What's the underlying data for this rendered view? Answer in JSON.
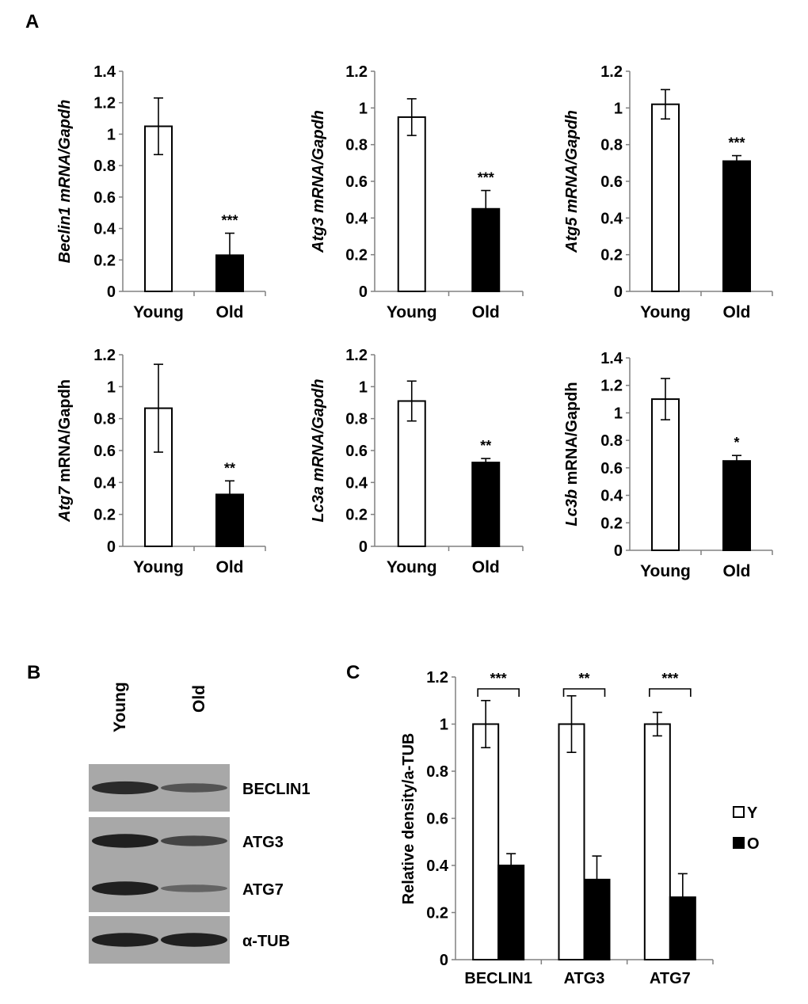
{
  "panels": {
    "a": "A",
    "b": "B",
    "c": "C"
  },
  "colors": {
    "young": "#ffffff",
    "old": "#000000",
    "axis": "#808080",
    "blot_bg": "#a8a8a8",
    "band": "#1a1a1a"
  },
  "chart_data": [
    {
      "type": "bar",
      "ylabel_italic": "Beclin1 mRNA/Gapdh",
      "ylabel_plain": "",
      "categories": [
        "Young",
        "Old"
      ],
      "values": [
        1.05,
        0.23
      ],
      "errors": [
        0.18,
        0.14
      ],
      "significance": [
        "",
        "***"
      ],
      "ylim": [
        0,
        1.4
      ],
      "ticks": [
        "0",
        "0.2",
        "0.4",
        "0.6",
        "0.8",
        "1",
        "1.2",
        "1.4"
      ]
    },
    {
      "type": "bar",
      "ylabel_italic": "Atg3 mRNA/Gapdh",
      "ylabel_plain": "",
      "categories": [
        "Young",
        "Old"
      ],
      "values": [
        0.95,
        0.45
      ],
      "errors": [
        0.1,
        0.1
      ],
      "significance": [
        "",
        "***"
      ],
      "ylim": [
        0,
        1.2
      ],
      "ticks": [
        "0",
        "0.2",
        "0.4",
        "0.6",
        "0.8",
        "1",
        "1.2"
      ]
    },
    {
      "type": "bar",
      "ylabel_italic": "Atg5 mRNA/Gapdh",
      "ylabel_plain": "",
      "categories": [
        "Young",
        "Old"
      ],
      "values": [
        1.02,
        0.71
      ],
      "errors": [
        0.08,
        0.03
      ],
      "significance": [
        "",
        "***"
      ],
      "ylim": [
        0,
        1.2
      ],
      "ticks": [
        "0",
        "0.2",
        "0.4",
        "0.6",
        "0.8",
        "1",
        "1.2"
      ]
    },
    {
      "type": "bar",
      "ylabel_italic": "Atg7",
      "ylabel_plain": " mRNA/Gapdh",
      "categories": [
        "Young",
        "Old"
      ],
      "values": [
        0.865,
        0.325
      ],
      "errors": [
        0.275,
        0.085
      ],
      "significance": [
        "",
        "**"
      ],
      "ylim": [
        0,
        1.2
      ],
      "ticks": [
        "0",
        "0.2",
        "0.4",
        "0.6",
        "0.8",
        "1",
        "1.2"
      ]
    },
    {
      "type": "bar",
      "ylabel_italic": "Lc3a mRNA/Gapdh",
      "ylabel_plain": "",
      "categories": [
        "Young",
        "Old"
      ],
      "values": [
        0.91,
        0.525
      ],
      "errors": [
        0.125,
        0.025
      ],
      "significance": [
        "",
        "**"
      ],
      "ylim": [
        0,
        1.2
      ],
      "ticks": [
        "0",
        "0.2",
        "0.4",
        "0.6",
        "0.8",
        "1",
        "1.2"
      ]
    },
    {
      "type": "bar",
      "ylabel_italic": "Lc3b",
      "ylabel_plain": " mRNA/Gapdh",
      "categories": [
        "Young",
        "Old"
      ],
      "values": [
        1.1,
        0.65
      ],
      "errors": [
        0.15,
        0.04
      ],
      "significance": [
        "",
        "*"
      ],
      "ylim": [
        0,
        1.4
      ],
      "ticks": [
        "0",
        "0.2",
        "0.4",
        "0.6",
        "0.8",
        "1",
        "1.2",
        "1.4"
      ]
    },
    {
      "type": "bar",
      "ylabel": "Relative density/a-TUB",
      "categories": [
        "BECLIN1",
        "ATG3",
        "ATG7"
      ],
      "series": [
        {
          "name": "Y",
          "values": [
            1.0,
            1.0,
            1.0
          ],
          "errors": [
            0.1,
            0.12,
            0.05
          ]
        },
        {
          "name": "O",
          "values": [
            0.4,
            0.34,
            0.265
          ],
          "errors": [
            0.05,
            0.1,
            0.1
          ]
        }
      ],
      "significance": [
        "***",
        "**",
        "***"
      ],
      "ylim": [
        0,
        1.2
      ],
      "ticks": [
        "0",
        "0.2",
        "0.4",
        "0.6",
        "0.8",
        "1",
        "1.2"
      ],
      "legend_position": "right"
    }
  ],
  "blot": {
    "lanes": [
      "Young",
      "Old"
    ],
    "rows": [
      {
        "label": "BECLIN1",
        "bands": [
          0.85,
          0.45
        ]
      },
      {
        "label": "ATG3",
        "bands": [
          0.95,
          0.6
        ]
      },
      {
        "label": "ATG7",
        "bands": [
          0.95,
          0.3
        ]
      },
      {
        "label": "α-TUB",
        "bands": [
          0.95,
          0.95
        ]
      }
    ]
  }
}
